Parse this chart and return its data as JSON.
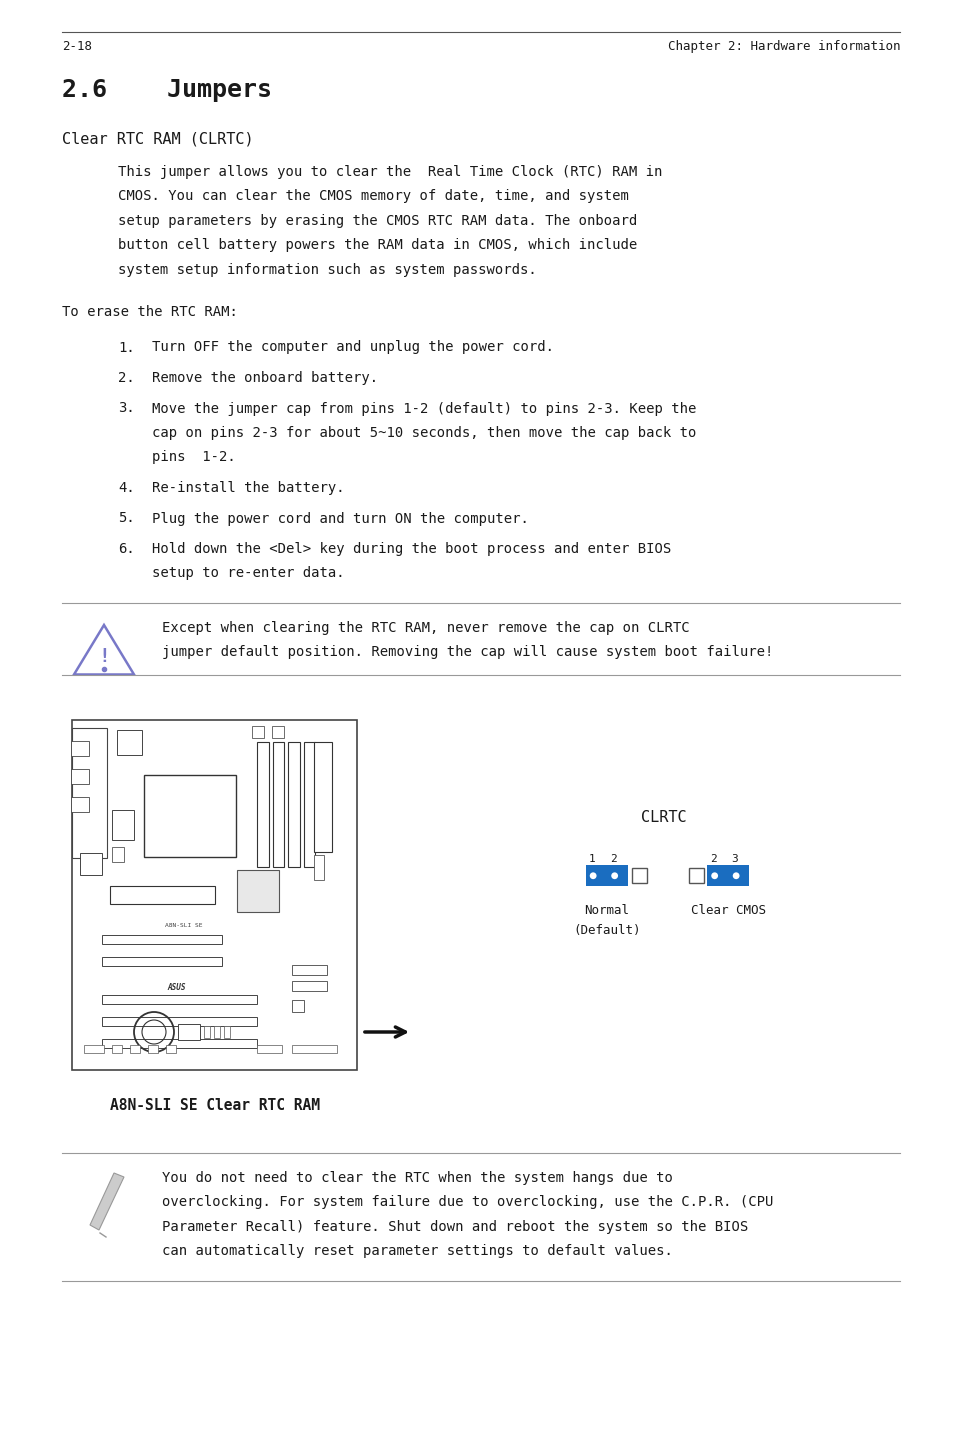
{
  "title": "2.6    Jumpers",
  "section_title": "Clear RTC RAM (CLRTC)",
  "paragraph1_lines": [
    "This jumper allows you to clear the  Real Time Clock (RTC) RAM in",
    "CMOS. You can clear the CMOS memory of date, time, and system",
    "setup parameters by erasing the CMOS RTC RAM data. The onboard",
    "button cell battery powers the RAM data in CMOS, which include",
    "system setup information such as system passwords."
  ],
  "to_erase": "To erase the RTC RAM:",
  "steps": [
    [
      "Turn OFF the computer and unplug the power cord."
    ],
    [
      "Remove the onboard battery."
    ],
    [
      "Move the jumper cap from pins 1-2 (default) to pins 2-3. Keep the",
      "cap on pins 2-3 for about 5~10 seconds, then move the cap back to",
      "pins  1-2."
    ],
    [
      "Re-install the battery."
    ],
    [
      "Plug the power cord and turn ON the computer."
    ],
    [
      "Hold down the <Del> key during the boot process and enter BIOS",
      "setup to re-enter data."
    ]
  ],
  "warning_text_lines": [
    "Except when clearing the RTC RAM, never remove the cap on CLRTC",
    "jumper default position. Removing the cap will cause system boot failure!"
  ],
  "diagram_caption": "A8N-SLI SE Clear RTC RAM",
  "clrtc_label": "CLRTC",
  "normal_label_line1": "Normal",
  "normal_label_line2": "(Default)",
  "clearcmos_label": "Clear CMOS",
  "pins_normal": "1  2",
  "pins_clear": "2  3",
  "note_text_lines": [
    "You do not need to clear the RTC when the system hangs due to",
    "overclocking. For system failure due to overclocking, use the C.P.R. (CPU",
    "Parameter Recall) feature. Shut down and reboot the system so the BIOS",
    "can automatically reset parameter settings to default values."
  ],
  "footer_left": "2-18",
  "footer_right": "Chapter 2: Hardware information",
  "bg_color": "#ffffff",
  "text_color": "#1a1a1a",
  "line_color": "#999999",
  "jumper_blue": "#1a6dc0",
  "warning_tri_color": "#7878c8",
  "body_font": "monospace",
  "title_fontsize": 18,
  "section_fontsize": 11,
  "body_fontsize": 10,
  "small_fontsize": 9,
  "footer_fontsize": 9
}
